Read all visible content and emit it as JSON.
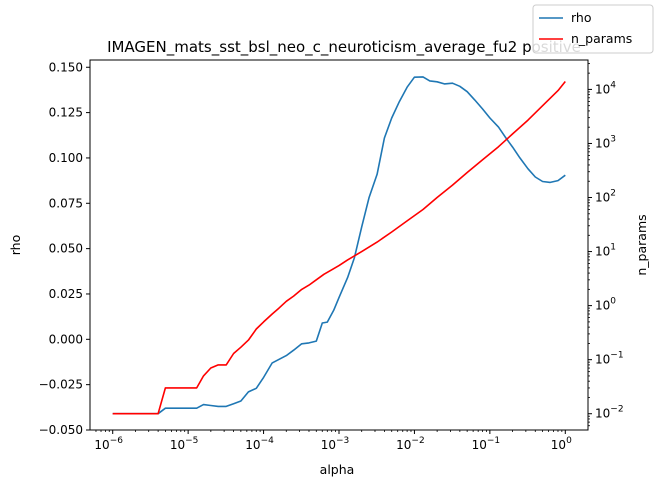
{
  "chart_data": {
    "type": "line",
    "title": "IMAGEN_mats_sst_bsl_neo_c_neuroticism_average_fu2 positive",
    "xlabel": "alpha",
    "ylabel": "rho",
    "y2label": "n_params",
    "xscale": "log",
    "xlim": [
      5e-07,
      2
    ],
    "ylim": [
      -0.05,
      0.154
    ],
    "y2scale": "log",
    "y2lim": [
      0.005,
      35000
    ],
    "x_ticks": [
      {
        "exp": "−6",
        "value": 1e-06
      },
      {
        "exp": "−5",
        "value": 1e-05
      },
      {
        "exp": "−4",
        "value": 0.0001
      },
      {
        "exp": "−3",
        "value": 0.001
      },
      {
        "exp": "−2",
        "value": 0.01
      },
      {
        "exp": "−1",
        "value": 0.1
      },
      {
        "exp": "0",
        "value": 1
      }
    ],
    "y_ticks": [
      "−0.050",
      "−0.025",
      "0.000",
      "0.025",
      "0.050",
      "0.075",
      "0.100",
      "0.125",
      "0.150"
    ],
    "y_tick_values": [
      -0.05,
      -0.025,
      0.0,
      0.025,
      0.05,
      0.075,
      0.1,
      0.125,
      0.15
    ],
    "y2_ticks": [
      {
        "exp": "−2",
        "value": 0.01
      },
      {
        "exp": "−1",
        "value": 0.1
      },
      {
        "exp": "0",
        "value": 1
      },
      {
        "exp": "1",
        "value": 10
      },
      {
        "exp": "2",
        "value": 100
      },
      {
        "exp": "3",
        "value": 1000
      },
      {
        "exp": "4",
        "value": 10000
      }
    ],
    "legend_position": "top-right",
    "series": [
      {
        "name": "rho",
        "axis": "left",
        "color": "#1f77b4",
        "points": [
          [
            1e-06,
            -0.041
          ],
          [
            2e-06,
            -0.041
          ],
          [
            4e-06,
            -0.041
          ],
          [
            5e-06,
            -0.038
          ],
          [
            8e-06,
            -0.038
          ],
          [
            1.3e-05,
            -0.038
          ],
          [
            1.6e-05,
            -0.036
          ],
          [
            2e-05,
            -0.0365
          ],
          [
            2.5e-05,
            -0.037
          ],
          [
            3.2e-05,
            -0.037
          ],
          [
            4e-05,
            -0.0355
          ],
          [
            5e-05,
            -0.034
          ],
          [
            6.3e-05,
            -0.029
          ],
          [
            8e-05,
            -0.027
          ],
          [
            0.0001,
            -0.021
          ],
          [
            0.00013,
            -0.013
          ],
          [
            0.0002,
            -0.009
          ],
          [
            0.00025,
            -0.006
          ],
          [
            0.00032,
            -0.0025
          ],
          [
            0.0004,
            -0.002
          ],
          [
            0.0005,
            -0.001
          ],
          [
            0.0006,
            0.009
          ],
          [
            0.0007,
            0.0095
          ],
          [
            0.00085,
            0.016
          ],
          [
            0.001,
            0.023
          ],
          [
            0.0013,
            0.034
          ],
          [
            0.0016,
            0.045
          ],
          [
            0.002,
            0.062
          ],
          [
            0.0025,
            0.078
          ],
          [
            0.0032,
            0.091
          ],
          [
            0.004,
            0.111
          ],
          [
            0.005,
            0.122
          ],
          [
            0.0063,
            0.131
          ],
          [
            0.008,
            0.139
          ],
          [
            0.01,
            0.1445
          ],
          [
            0.013,
            0.1447
          ],
          [
            0.016,
            0.1425
          ],
          [
            0.02,
            0.142
          ],
          [
            0.025,
            0.1408
          ],
          [
            0.032,
            0.1412
          ],
          [
            0.04,
            0.1395
          ],
          [
            0.05,
            0.1365
          ],
          [
            0.063,
            0.132
          ],
          [
            0.08,
            0.127
          ],
          [
            0.1,
            0.122
          ],
          [
            0.13,
            0.117
          ],
          [
            0.16,
            0.1115
          ],
          [
            0.2,
            0.106
          ],
          [
            0.25,
            0.1
          ],
          [
            0.32,
            0.094
          ],
          [
            0.4,
            0.0895
          ],
          [
            0.5,
            0.087
          ],
          [
            0.63,
            0.0865
          ],
          [
            0.8,
            0.0875
          ],
          [
            1,
            0.0905
          ]
        ]
      },
      {
        "name": "n_params",
        "axis": "right",
        "color": "#ff0000",
        "points": [
          [
            1e-06,
            0.01
          ],
          [
            2e-06,
            0.01
          ],
          [
            4e-06,
            0.01
          ],
          [
            5e-06,
            0.03
          ],
          [
            8e-06,
            0.03
          ],
          [
            1.3e-05,
            0.03
          ],
          [
            1.6e-05,
            0.05
          ],
          [
            2e-05,
            0.07
          ],
          [
            2.5e-05,
            0.08
          ],
          [
            3.2e-05,
            0.08
          ],
          [
            4e-05,
            0.13
          ],
          [
            5e-05,
            0.17
          ],
          [
            6.3e-05,
            0.23
          ],
          [
            8e-05,
            0.37
          ],
          [
            0.0001,
            0.5
          ],
          [
            0.00013,
            0.7
          ],
          [
            0.00016,
            0.9
          ],
          [
            0.0002,
            1.2
          ],
          [
            0.00025,
            1.5
          ],
          [
            0.00032,
            2
          ],
          [
            0.0004,
            2.4
          ],
          [
            0.0005,
            3
          ],
          [
            0.00063,
            3.8
          ],
          [
            0.0008,
            4.6
          ],
          [
            0.001,
            5.5
          ],
          [
            0.0013,
            7
          ],
          [
            0.002,
            10
          ],
          [
            0.0032,
            15
          ],
          [
            0.005,
            23
          ],
          [
            0.008,
            37
          ],
          [
            0.013,
            60
          ],
          [
            0.02,
            100
          ],
          [
            0.032,
            170
          ],
          [
            0.05,
            290
          ],
          [
            0.08,
            500
          ],
          [
            0.13,
            870
          ],
          [
            0.2,
            1500
          ],
          [
            0.32,
            2700
          ],
          [
            0.5,
            5000
          ],
          [
            0.8,
            9500
          ],
          [
            1,
            14000
          ]
        ]
      }
    ]
  }
}
